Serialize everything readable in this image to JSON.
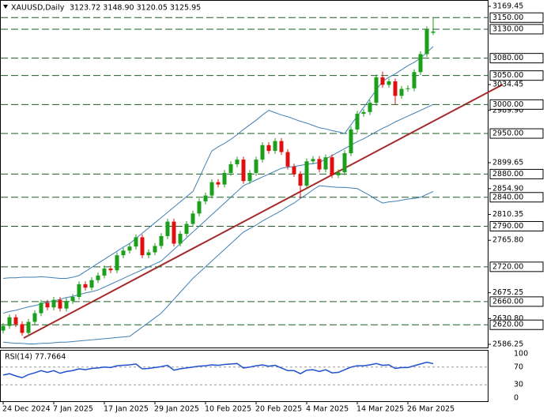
{
  "chart_data": {
    "type": "candlestick",
    "title": "XAUUSD,Daily",
    "ohlc_label": "3123.72 3148.90 3120.05 3125.95",
    "categories": [
      "24 Dec 2024",
      null,
      null,
      null,
      null,
      null,
      null,
      null,
      "7 Jan 2025",
      null,
      null,
      null,
      null,
      null,
      null,
      null,
      "17 Jan 2025",
      null,
      null,
      null,
      null,
      null,
      null,
      null,
      "29 Jan 2025",
      null,
      null,
      null,
      null,
      null,
      null,
      null,
      "10 Feb 2025",
      null,
      null,
      null,
      null,
      null,
      null,
      null,
      "20 Feb 2025",
      null,
      null,
      null,
      null,
      null,
      null,
      null,
      "4 Mar 2025",
      null,
      null,
      null,
      null,
      null,
      null,
      null,
      "14 Mar 2025",
      null,
      null,
      null,
      null,
      null,
      null,
      null,
      "26 Mar 2025",
      null,
      null,
      null,
      null
    ],
    "open": [
      2610,
      2618,
      2633,
      2621,
      2606,
      2625,
      2640,
      2658,
      2650,
      2663,
      2648,
      2661,
      2668,
      2690,
      2684,
      2697,
      2705,
      2717,
      2714,
      2740,
      2748,
      2755,
      2771,
      2740,
      2745,
      2756,
      2773,
      2798,
      2760,
      2777,
      2794,
      2812,
      2833,
      2843,
      2866,
      2862,
      2882,
      2897,
      2905,
      2868,
      2882,
      2905,
      2930,
      2920,
      2937,
      2918,
      2893,
      2880,
      2860,
      2902,
      2906,
      2888,
      2909,
      2878,
      2883,
      2916,
      2957,
      2984,
      2987,
      3003,
      3047,
      3034,
      3040,
      3015,
      3027,
      3028,
      3056,
      3087,
      3123.72
    ],
    "high": [
      2623,
      2638,
      2638,
      2626,
      2630,
      2645,
      2663,
      2663,
      2668,
      2668,
      2666,
      2673,
      2695,
      2695,
      2702,
      2710,
      2722,
      2722,
      2745,
      2753,
      2760,
      2776,
      2776,
      2750,
      2761,
      2778,
      2803,
      2803,
      2782,
      2799,
      2817,
      2838,
      2848,
      2871,
      2871,
      2887,
      2902,
      2910,
      2910,
      2887,
      2910,
      2935,
      2935,
      2942,
      2942,
      2923,
      2898,
      2885,
      2907,
      2911,
      2911,
      2914,
      2914,
      2888,
      2921,
      2962,
      2989,
      2992,
      3008,
      3052,
      3057,
      3045,
      3045,
      3032,
      3033,
      3061,
      3092,
      3135,
      3148.9
    ],
    "low": [
      2605,
      2613,
      2616,
      2601,
      2601,
      2620,
      2635,
      2645,
      2645,
      2643,
      2643,
      2656,
      2663,
      2679,
      2679,
      2692,
      2700,
      2709,
      2709,
      2735,
      2743,
      2750,
      2735,
      2735,
      2740,
      2751,
      2768,
      2755,
      2755,
      2772,
      2789,
      2807,
      2828,
      2838,
      2857,
      2857,
      2877,
      2892,
      2863,
      2863,
      2877,
      2900,
      2915,
      2915,
      2913,
      2888,
      2875,
      2838,
      2855,
      2897,
      2883,
      2883,
      2873,
      2873,
      2878,
      2911,
      2952,
      2979,
      2982,
      2998,
      3029,
      3029,
      3000,
      3010,
      3022,
      3023,
      3051,
      3082,
      3120.05
    ],
    "close": [
      2618,
      2633,
      2621,
      2606,
      2625,
      2640,
      2658,
      2650,
      2663,
      2648,
      2661,
      2668,
      2690,
      2684,
      2697,
      2705,
      2717,
      2714,
      2740,
      2748,
      2755,
      2771,
      2740,
      2745,
      2756,
      2773,
      2798,
      2760,
      2777,
      2794,
      2812,
      2833,
      2843,
      2866,
      2862,
      2882,
      2897,
      2905,
      2868,
      2882,
      2905,
      2930,
      2920,
      2937,
      2918,
      2893,
      2880,
      2860,
      2902,
      2906,
      2888,
      2909,
      2878,
      2883,
      2916,
      2957,
      2984,
      2987,
      3003,
      3047,
      3034,
      3040,
      3015,
      3027,
      3028,
      3056,
      3087,
      3130,
      3125.95
    ],
    "up_color": "#1aa01a",
    "down_color": "#e01010",
    "bands": {
      "color": "#3f7fb5",
      "upper": [
        2700,
        2701,
        2701,
        2702,
        2702,
        2702,
        2703,
        2702,
        2701,
        2700,
        2700,
        2702,
        2705,
        2712,
        2719,
        2726,
        2733,
        2740,
        2747,
        2754,
        2760,
        2769,
        2778,
        2787,
        2796,
        2805,
        2814,
        2823,
        2832,
        2841,
        2850,
        2873,
        2897,
        2920,
        2927,
        2933,
        2940,
        2948,
        2957,
        2965,
        2973,
        2982,
        2990,
        2986,
        2982,
        2979,
        2975,
        2971,
        2968,
        2964,
        2960,
        2958,
        2955,
        2953,
        2950,
        2965,
        2980,
        2995,
        3010,
        3025,
        3040,
        3047,
        3053,
        3060,
        3067,
        3073,
        3080,
        3090,
        3100
      ],
      "middle": [
        2640,
        2643,
        2645,
        2648,
        2651,
        2653,
        2656,
        2659,
        2661,
        2664,
        2667,
        2669,
        2672,
        2675,
        2677,
        2680,
        2685,
        2690,
        2695,
        2700,
        2705,
        2710,
        2715,
        2720,
        2725,
        2730,
        2740,
        2750,
        2760,
        2770,
        2780,
        2790,
        2800,
        2810,
        2820,
        2830,
        2840,
        2850,
        2860,
        2865,
        2870,
        2875,
        2880,
        2885,
        2890,
        2892,
        2893,
        2895,
        2897,
        2898,
        2900,
        2906,
        2912,
        2918,
        2924,
        2930,
        2936,
        2941,
        2947,
        2953,
        2959,
        2964,
        2970,
        2975,
        2980,
        2985,
        2990,
        2995,
        3000
      ],
      "lower": [
        2590,
        2589,
        2588,
        2588,
        2587,
        2587,
        2588,
        2588,
        2589,
        2590,
        2590,
        2591,
        2592,
        2593,
        2594,
        2595,
        2596,
        2597,
        2598,
        2599,
        2600,
        2608,
        2616,
        2624,
        2632,
        2640,
        2652,
        2664,
        2676,
        2688,
        2700,
        2710,
        2720,
        2730,
        2740,
        2750,
        2760,
        2770,
        2780,
        2786,
        2792,
        2799,
        2805,
        2811,
        2817,
        2824,
        2830,
        2838,
        2845,
        2853,
        2860,
        2859,
        2858,
        2857,
        2857,
        2856,
        2855,
        2849,
        2843,
        2836,
        2830,
        2832,
        2833,
        2835,
        2837,
        2838,
        2840,
        2845,
        2850
      ]
    },
    "ylim": [
      2586.25,
      3169.45
    ],
    "yticks": [
      3169.45,
      3034.45,
      {
        "value": 2989.9,
        "label": "2989.90"
      },
      2899.65,
      {
        "value": 2854.9,
        "label": "2854.90"
      },
      2810.35,
      {
        "value": 2765.8,
        "label": "2765.80"
      },
      2675.25,
      {
        "value": 2630.8,
        "label": "2630.80"
      },
      2586.25
    ],
    "levels": [
      {
        "value": 3150,
        "label": "3150.00"
      },
      {
        "value": 3130,
        "label": "3130.00"
      },
      {
        "value": 3080,
        "label": "3080.00"
      },
      {
        "value": 3050,
        "label": "3050.00"
      },
      {
        "value": 3000,
        "label": "3000.00"
      },
      {
        "value": 2950,
        "label": "2950.00"
      },
      {
        "value": 2880,
        "label": "2880.00"
      },
      {
        "value": 2840,
        "label": "2840.00"
      },
      {
        "value": 2790,
        "label": "2790.00"
      },
      {
        "value": 2720,
        "label": "2720.00"
      },
      {
        "value": 2660,
        "label": "2660.00"
      },
      {
        "value": 2620,
        "label": "2620.00"
      }
    ],
    "level_color": "#1d5e20",
    "rsi": {
      "title": "RSI(14) 77.7664",
      "color": "#1f50d0",
      "values": [
        52,
        55,
        50,
        46,
        53,
        57,
        62,
        58,
        62,
        56,
        60,
        62,
        66,
        64,
        67,
        68,
        70,
        69,
        73,
        74,
        75,
        77,
        66,
        67,
        69,
        71,
        74,
        63,
        66,
        68,
        70,
        72,
        73,
        75,
        74,
        76,
        77,
        78,
        68,
        70,
        73,
        75,
        72,
        74,
        68,
        62,
        62,
        55,
        63,
        64,
        60,
        64,
        57,
        58,
        64,
        70,
        73,
        73,
        75,
        78,
        74,
        75,
        67,
        69,
        69,
        73,
        77,
        81,
        77.7664
      ],
      "ylim": [
        0,
        100
      ],
      "yticks": [
        100,
        70,
        30,
        0
      ],
      "levels": [
        70,
        30
      ]
    }
  }
}
